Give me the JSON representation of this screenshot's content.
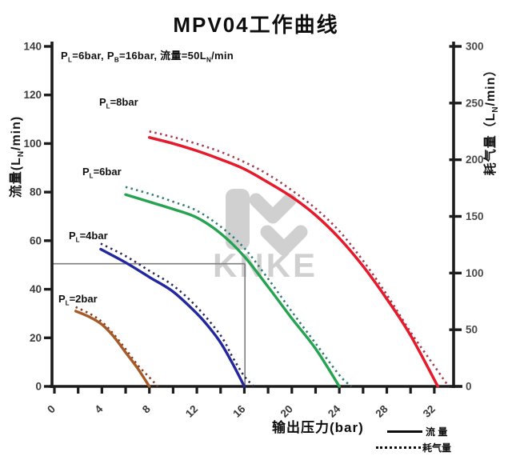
{
  "title": "MPV04工作曲线",
  "annotation_parts": [
    {
      "t": "P"
    },
    {
      "t": "L",
      "sub": true
    },
    {
      "t": "=6bar, P"
    },
    {
      "t": "B",
      "sub": true
    },
    {
      "t": "=16bar, 流量=50L"
    },
    {
      "t": "N",
      "sub": true
    },
    {
      "t": "/min"
    }
  ],
  "left_axis_title_parts": [
    {
      "t": "流量(L"
    },
    {
      "t": "N",
      "sub": true
    },
    {
      "t": "/min)"
    }
  ],
  "right_axis_title_parts": [
    {
      "t": "耗气量（L"
    },
    {
      "t": "N",
      "sub": true
    },
    {
      "t": "/min）"
    }
  ],
  "x_axis_title": "输出压力(bar)",
  "curve_labels": [
    {
      "id": "pl8",
      "parts": [
        {
          "t": "P"
        },
        {
          "t": "L",
          "sub": true
        },
        {
          "t": "=8bar"
        }
      ]
    },
    {
      "id": "pl6",
      "parts": [
        {
          "t": "P"
        },
        {
          "t": "L",
          "sub": true
        },
        {
          "t": "=6bar"
        }
      ]
    },
    {
      "id": "pl4",
      "parts": [
        {
          "t": "P"
        },
        {
          "t": "L",
          "sub": true
        },
        {
          "t": "=4bar"
        }
      ]
    },
    {
      "id": "pl2",
      "parts": [
        {
          "t": "P"
        },
        {
          "t": "L",
          "sub": true
        },
        {
          "t": "=2bar"
        }
      ]
    }
  ],
  "legend": {
    "items": [
      {
        "symbol": "solid-line",
        "label": "流 量"
      },
      {
        "symbol": "dotted-line",
        "label": "耗气量"
      }
    ]
  },
  "watermark": {
    "text": "KNKE",
    "color": "#cccccc"
  },
  "colors": {
    "axis": "#1c1c1c",
    "tick_label_left": "#3c3c3c",
    "tick_label_right": "#4a4a4a",
    "tick_label_bottom": "#383838",
    "reference_line": "#7d7d7d"
  },
  "chart_data": {
    "type": "line",
    "title": "MPV04工作曲线",
    "xlabel": "输出压力(bar)",
    "x_range": [
      0,
      33.8
    ],
    "x_major_ticks": [
      0,
      4,
      8,
      12,
      16,
      20,
      24,
      28,
      32
    ],
    "x_minor_step": 2,
    "left_axis": {
      "label": "流量(LN/min)",
      "range": [
        0,
        140
      ],
      "ticks": [
        0,
        20,
        40,
        60,
        80,
        100,
        120,
        140
      ]
    },
    "right_axis": {
      "label": "耗气量(LN/min)",
      "range": [
        0,
        300
      ],
      "ticks": [
        0,
        50,
        100,
        150,
        200,
        250,
        300
      ]
    },
    "condition_note": "PL=6bar, PB=16bar, 流量=50LN/min",
    "reference_lines": {
      "flow_value": 50.5,
      "pressure_value": 16.05
    },
    "legend_position": "bottom-right",
    "grid": false,
    "series": [
      {
        "id": "pl2-air",
        "name": "PL=2bar 耗气量",
        "axis": "right",
        "style": "dotted",
        "color": "#8c3a22",
        "width": 2.6,
        "points": [
          [
            1.8,
            70
          ],
          [
            3,
            64
          ],
          [
            4,
            57
          ],
          [
            5,
            46
          ],
          [
            6,
            33
          ],
          [
            7,
            19
          ],
          [
            8,
            8
          ],
          [
            8.7,
            0
          ]
        ]
      },
      {
        "id": "pl4-air",
        "name": "PL=4bar 耗气量",
        "axis": "right",
        "style": "dotted",
        "color": "#2a2a55",
        "width": 2.6,
        "points": [
          [
            3.9,
            126
          ],
          [
            6,
            115
          ],
          [
            8,
            102
          ],
          [
            10,
            89
          ],
          [
            12,
            70
          ],
          [
            14,
            45
          ],
          [
            15,
            26
          ],
          [
            16,
            9
          ],
          [
            16.8,
            0
          ]
        ]
      },
      {
        "id": "pl6-air",
        "name": "PL=6bar 耗气量",
        "axis": "right",
        "style": "dotted",
        "color": "#2e7d6e",
        "width": 2.6,
        "points": [
          [
            6,
            176
          ],
          [
            8,
            170
          ],
          [
            10,
            163
          ],
          [
            12,
            155
          ],
          [
            14,
            141
          ],
          [
            16,
            122
          ],
          [
            18,
            95
          ],
          [
            20,
            66
          ],
          [
            22,
            38
          ],
          [
            24,
            10
          ],
          [
            25,
            0
          ]
        ]
      },
      {
        "id": "pl8-air",
        "name": "PL=8bar 耗气量",
        "axis": "right",
        "style": "dotted",
        "color": "#a63a52",
        "width": 2.6,
        "points": [
          [
            8,
            225
          ],
          [
            10,
            220
          ],
          [
            12,
            214
          ],
          [
            14,
            207
          ],
          [
            16,
            198
          ],
          [
            18,
            187
          ],
          [
            20,
            173
          ],
          [
            22,
            157
          ],
          [
            24,
            137
          ],
          [
            26,
            111
          ],
          [
            28,
            81
          ],
          [
            30,
            48
          ],
          [
            32,
            18
          ],
          [
            33.2,
            0
          ]
        ]
      },
      {
        "id": "pl2-flow",
        "name": "PL=2bar 流量",
        "axis": "left",
        "style": "solid",
        "color": "#a55a28",
        "width": 3.4,
        "points": [
          [
            1.8,
            31
          ],
          [
            3,
            28.5
          ],
          [
            4,
            25.5
          ],
          [
            5,
            20.5
          ],
          [
            6,
            14
          ],
          [
            7,
            7.5
          ],
          [
            8,
            0
          ]
        ]
      },
      {
        "id": "pl4-flow",
        "name": "PL=4bar 流量",
        "axis": "left",
        "style": "solid",
        "color": "#22279f",
        "width": 3.4,
        "points": [
          [
            3.9,
            56.5
          ],
          [
            6,
            51
          ],
          [
            8,
            45
          ],
          [
            10,
            39
          ],
          [
            12,
            30
          ],
          [
            13,
            24.5
          ],
          [
            14,
            18
          ],
          [
            15,
            9.5
          ],
          [
            16,
            0
          ]
        ]
      },
      {
        "id": "pl6-flow",
        "name": "PL=6bar 流量",
        "axis": "left",
        "style": "solid",
        "color": "#26a351",
        "width": 3.4,
        "points": [
          [
            6,
            79
          ],
          [
            8,
            76
          ],
          [
            10,
            73
          ],
          [
            12,
            69.5
          ],
          [
            14,
            63
          ],
          [
            16,
            53.5
          ],
          [
            18,
            41
          ],
          [
            20,
            28
          ],
          [
            22,
            15.5
          ],
          [
            24,
            0
          ]
        ]
      },
      {
        "id": "pl8-flow",
        "name": "PL=8bar 流量",
        "axis": "left",
        "style": "solid",
        "color": "#e51a2b",
        "width": 3.5,
        "points": [
          [
            8,
            102.5
          ],
          [
            10,
            100
          ],
          [
            12,
            97
          ],
          [
            14,
            93.5
          ],
          [
            16,
            89.5
          ],
          [
            18,
            84
          ],
          [
            20,
            78
          ],
          [
            22,
            70.5
          ],
          [
            24,
            61
          ],
          [
            26,
            49.5
          ],
          [
            28,
            36
          ],
          [
            30,
            21
          ],
          [
            32.3,
            0
          ]
        ]
      }
    ]
  }
}
